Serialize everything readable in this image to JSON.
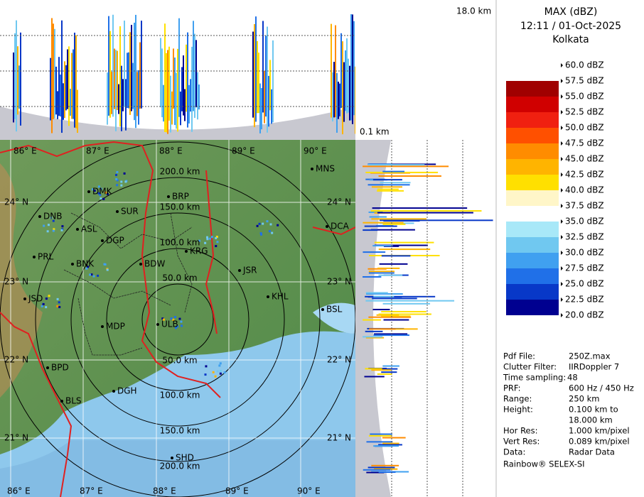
{
  "header": {
    "title": "MAX (dBZ)",
    "time": "12:11 / 01-Oct-2025",
    "site": "Kolkata"
  },
  "top_panel": {
    "label": "18.0 km"
  },
  "side_panel": {
    "label": "0.1 km"
  },
  "legend": [
    {
      "label": "60.0 dBZ",
      "color": "#ffffff"
    },
    {
      "label": "57.5 dBZ",
      "color": "#ffffff"
    },
    {
      "label": "55.0 dBZ",
      "color": "#a00000"
    },
    {
      "label": "52.5 dBZ",
      "color": "#d00000"
    },
    {
      "label": "50.0 dBZ",
      "color": "#f02010"
    },
    {
      "label": "47.5 dBZ",
      "color": "#ff5000"
    },
    {
      "label": "45.0 dBZ",
      "color": "#ff8c00"
    },
    {
      "label": "42.5 dBZ",
      "color": "#ffb400"
    },
    {
      "label": "40.0 dBZ",
      "color": "#ffe000"
    },
    {
      "label": "37.5 dBZ",
      "color": "#fff6c8"
    },
    {
      "label": "35.0 dBZ",
      "color": "#ffffff"
    },
    {
      "label": "32.5 dBZ",
      "color": "#a8e8f8"
    },
    {
      "label": "30.0 dBZ",
      "color": "#70c8f0"
    },
    {
      "label": "27.5 dBZ",
      "color": "#40a0f0"
    },
    {
      "label": "25.0 dBZ",
      "color": "#2070e8"
    },
    {
      "label": "22.5 dBZ",
      "color": "#0838c8"
    },
    {
      "label": "20.0 dBZ",
      "color": "#000090"
    }
  ],
  "info": [
    {
      "key": "Pdf File:",
      "value": "250Z.max"
    },
    {
      "key": "Clutter Filter:",
      "value": "IIRDoppler 7"
    },
    {
      "key": "Time sampling:",
      "value": "48"
    },
    {
      "key": "PRF:",
      "value": "600 Hz / 450 Hz"
    },
    {
      "key": "Range:",
      "value": "250 km"
    },
    {
      "key": "Height:",
      "value": "0.100 km to"
    },
    {
      "key": "",
      "value": "18.000 km"
    },
    {
      "key": "Hor Res:",
      "value": "1.000 km/pixel"
    },
    {
      "key": "Vert Res:",
      "value": "0.089 km/pixel"
    },
    {
      "key": "Data:",
      "value": "Radar Data"
    }
  ],
  "footer": "Rainbow® SELEX-SI",
  "map": {
    "lon_labels_top": [
      "86° E",
      "87° E",
      "88° E",
      "89° E",
      "90° E"
    ],
    "lon_labels_bottom": [
      "86° E",
      "87° E",
      "88° E",
      "89° E",
      "90° E"
    ],
    "lat_labels_left": [
      "24° N",
      "23° N",
      "22° N",
      "21° N"
    ],
    "lat_labels_right": [
      "24° N",
      "23° N",
      "22° N",
      "21° N"
    ],
    "ring_labels_north": [
      "200.0 km",
      "150.0 km",
      "100.0 km",
      "50.0 km"
    ],
    "ring_labels_south": [
      "50.0 km",
      "100.0 km",
      "150.0 km",
      "200.0 km"
    ],
    "cities": [
      "MNS",
      "BRP",
      "DMK",
      "SUR",
      "DNB",
      "ASL",
      "DGP",
      "DCA",
      "KRG",
      "PRL",
      "BNK",
      "BDW",
      "JSR",
      "KHL",
      "JSD",
      "BSL",
      "MDP",
      "ULB",
      "BPD",
      "DGH",
      "BLS",
      "SHD"
    ]
  }
}
